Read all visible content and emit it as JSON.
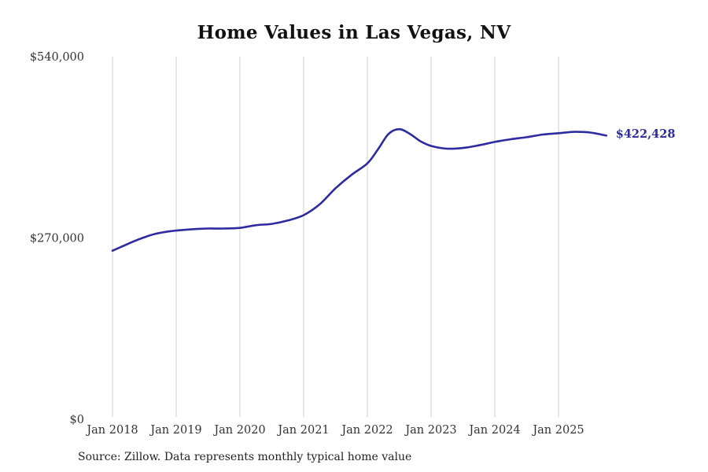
{
  "title": "Home Values in Las Vegas, NV",
  "end_label": "$422,428",
  "source_note": "Source: Zillow. Data represents monthly typical home value",
  "colors": {
    "line": "#2d2ba0",
    "end_label": "#2d2ba0",
    "gridline": "#cccccc",
    "tick_text": "#333333",
    "title_text": "#111111"
  },
  "chart_data": {
    "type": "line",
    "title": "Home Values in Las Vegas, NV",
    "xlabel": "",
    "ylabel": "",
    "ylim": [
      0,
      540000
    ],
    "grid": "vertical-only",
    "legend": "none",
    "y_ticks": [
      {
        "label": "$0",
        "value": 0
      },
      {
        "label": "$270,000",
        "value": 270000
      },
      {
        "label": "$540,000",
        "value": 540000
      }
    ],
    "x_ticks": [
      {
        "label": "Jan 2018",
        "date": "2018-01"
      },
      {
        "label": "Jan 2019",
        "date": "2019-01"
      },
      {
        "label": "Jan 2020",
        "date": "2020-01"
      },
      {
        "label": "Jan 2021",
        "date": "2021-01"
      },
      {
        "label": "Jan 2022",
        "date": "2022-01"
      },
      {
        "label": "Jan 2023",
        "date": "2023-01"
      },
      {
        "label": "Jan 2024",
        "date": "2024-01"
      },
      {
        "label": "Jan 2025",
        "date": "2025-01"
      }
    ],
    "series": [
      {
        "name": "Monthly typical home value",
        "points": [
          [
            "2018-01",
            251000
          ],
          [
            "2018-03",
            258000
          ],
          [
            "2018-05",
            265000
          ],
          [
            "2018-07",
            271000
          ],
          [
            "2018-09",
            276000
          ],
          [
            "2018-11",
            279000
          ],
          [
            "2019-01",
            281000
          ],
          [
            "2019-04",
            283000
          ],
          [
            "2019-07",
            284000
          ],
          [
            "2019-10",
            284000
          ],
          [
            "2020-01",
            285000
          ],
          [
            "2020-04",
            289000
          ],
          [
            "2020-07",
            291000
          ],
          [
            "2020-10",
            296000
          ],
          [
            "2021-01",
            304000
          ],
          [
            "2021-04",
            320000
          ],
          [
            "2021-07",
            344000
          ],
          [
            "2021-10",
            364000
          ],
          [
            "2022-01",
            381000
          ],
          [
            "2022-03",
            402000
          ],
          [
            "2022-05",
            425000
          ],
          [
            "2022-07",
            432000
          ],
          [
            "2022-09",
            425000
          ],
          [
            "2022-11",
            414000
          ],
          [
            "2023-01",
            407000
          ],
          [
            "2023-04",
            403000
          ],
          [
            "2023-07",
            404000
          ],
          [
            "2023-10",
            408000
          ],
          [
            "2024-01",
            413000
          ],
          [
            "2024-04",
            417000
          ],
          [
            "2024-07",
            420000
          ],
          [
            "2024-10",
            424000
          ],
          [
            "2025-01",
            426000
          ],
          [
            "2025-04",
            428000
          ],
          [
            "2025-07",
            427000
          ],
          [
            "2025-10",
            422428
          ]
        ]
      }
    ],
    "latest_value": 422428,
    "end_label": "$422,428"
  }
}
